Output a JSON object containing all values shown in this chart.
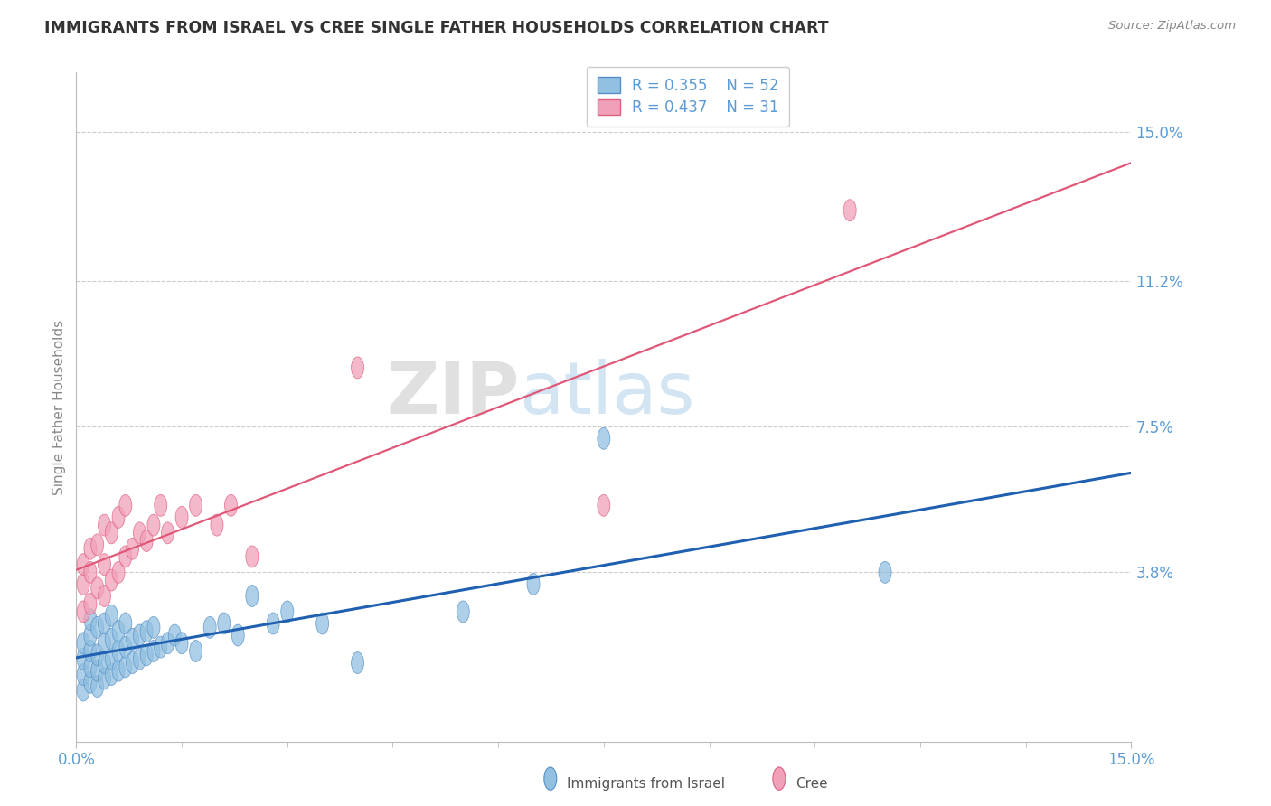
{
  "title": "IMMIGRANTS FROM ISRAEL VS CREE SINGLE FATHER HOUSEHOLDS CORRELATION CHART",
  "source": "Source: ZipAtlas.com",
  "ylabel": "Single Father Households",
  "xlim": [
    0.0,
    0.15
  ],
  "ylim": [
    -0.005,
    0.165
  ],
  "yticks": [
    0.038,
    0.075,
    0.112,
    0.15
  ],
  "ytick_labels": [
    "3.8%",
    "7.5%",
    "11.2%",
    "15.0%"
  ],
  "xtick_labels": [
    "0.0%",
    "15.0%"
  ],
  "legend_r1": "R = 0.355",
  "legend_n1": "N = 52",
  "legend_r2": "R = 0.437",
  "legend_n2": "N = 31",
  "color_blue": "#92c0e0",
  "color_blue_edge": "#5590c8",
  "color_blue_line": "#2060b0",
  "color_pink": "#f0a0b8",
  "color_pink_edge": "#e06080",
  "color_pink_line": "#e05878",
  "axis_label_color": "#5b9bd5",
  "grid_color": "#cccccc",
  "blue_x": [
    0.001,
    0.001,
    0.001,
    0.001,
    0.002,
    0.002,
    0.002,
    0.002,
    0.002,
    0.003,
    0.003,
    0.003,
    0.003,
    0.004,
    0.004,
    0.004,
    0.004,
    0.005,
    0.005,
    0.005,
    0.005,
    0.006,
    0.006,
    0.006,
    0.007,
    0.007,
    0.007,
    0.008,
    0.008,
    0.009,
    0.009,
    0.01,
    0.01,
    0.011,
    0.011,
    0.012,
    0.013,
    0.014,
    0.015,
    0.017,
    0.019,
    0.021,
    0.023,
    0.025,
    0.028,
    0.03,
    0.035,
    0.04,
    0.055,
    0.065,
    0.075,
    0.115
  ],
  "blue_y": [
    0.008,
    0.012,
    0.016,
    0.02,
    0.01,
    0.014,
    0.018,
    0.022,
    0.026,
    0.009,
    0.013,
    0.017,
    0.024,
    0.011,
    0.015,
    0.02,
    0.025,
    0.012,
    0.016,
    0.021,
    0.027,
    0.013,
    0.018,
    0.023,
    0.014,
    0.019,
    0.025,
    0.015,
    0.021,
    0.016,
    0.022,
    0.017,
    0.023,
    0.018,
    0.024,
    0.019,
    0.02,
    0.022,
    0.02,
    0.018,
    0.024,
    0.025,
    0.022,
    0.032,
    0.025,
    0.028,
    0.025,
    0.015,
    0.028,
    0.035,
    0.072,
    0.038
  ],
  "pink_x": [
    0.001,
    0.001,
    0.001,
    0.002,
    0.002,
    0.002,
    0.003,
    0.003,
    0.004,
    0.004,
    0.004,
    0.005,
    0.005,
    0.006,
    0.006,
    0.007,
    0.007,
    0.008,
    0.009,
    0.01,
    0.011,
    0.012,
    0.013,
    0.015,
    0.017,
    0.02,
    0.022,
    0.025,
    0.04,
    0.075,
    0.11
  ],
  "pink_y": [
    0.028,
    0.035,
    0.04,
    0.03,
    0.038,
    0.044,
    0.034,
    0.045,
    0.032,
    0.04,
    0.05,
    0.036,
    0.048,
    0.038,
    0.052,
    0.042,
    0.055,
    0.044,
    0.048,
    0.046,
    0.05,
    0.055,
    0.048,
    0.052,
    0.055,
    0.05,
    0.055,
    0.042,
    0.09,
    0.055,
    0.13
  ],
  "grid_yticks": [
    0.038,
    0.075,
    0.112,
    0.15
  ]
}
